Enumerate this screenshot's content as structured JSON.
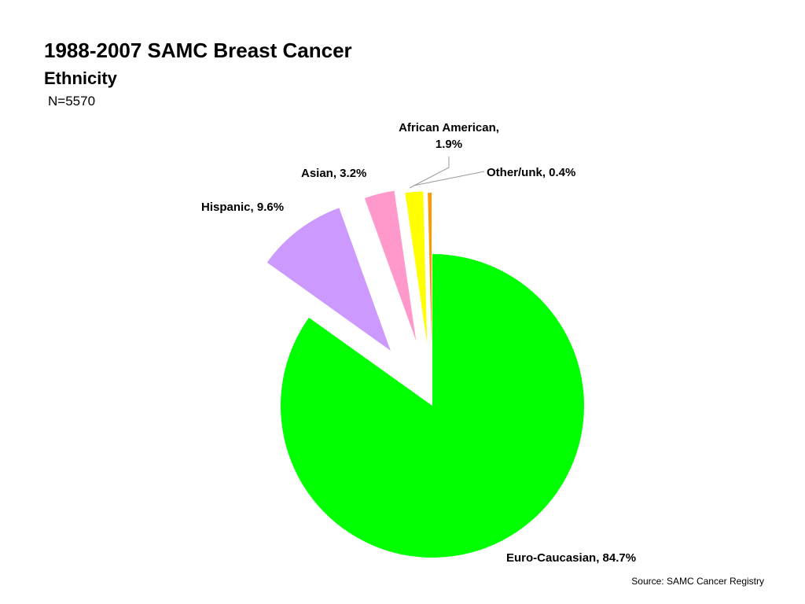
{
  "header": {
    "title": "1988-2007 SAMC Breast Cancer",
    "subtitle": "Ethnicity",
    "note": "N=5570"
  },
  "footer": {
    "source": "Source: SAMC Cancer Registry"
  },
  "chart_data": {
    "type": "pie",
    "title": "1988-2007 SAMC Breast Cancer",
    "subtitle": "Ethnicity",
    "legend": "none",
    "exploded": true,
    "slices": [
      {
        "name": "Euro-Caucasian",
        "value": 84.7,
        "label_lines": [
          "Euro-Caucasian, 84.7%"
        ],
        "color": "#00ff00"
      },
      {
        "name": "Hispanic",
        "value": 9.6,
        "label_lines": [
          "Hispanic, 9.6%"
        ],
        "color": "#cc99ff"
      },
      {
        "name": "Asian",
        "value": 3.2,
        "label_lines": [
          "Asian, 3.2%"
        ],
        "color": "#ff99cc"
      },
      {
        "name": "African American",
        "value": 1.9,
        "label_lines": [
          "African American,",
          "1.9%"
        ],
        "color": "#ffff00"
      },
      {
        "name": "Other/unk",
        "value": 0.4,
        "label_lines": [
          "Other/unk, 0.4%"
        ],
        "color": "#ff9900"
      }
    ]
  }
}
